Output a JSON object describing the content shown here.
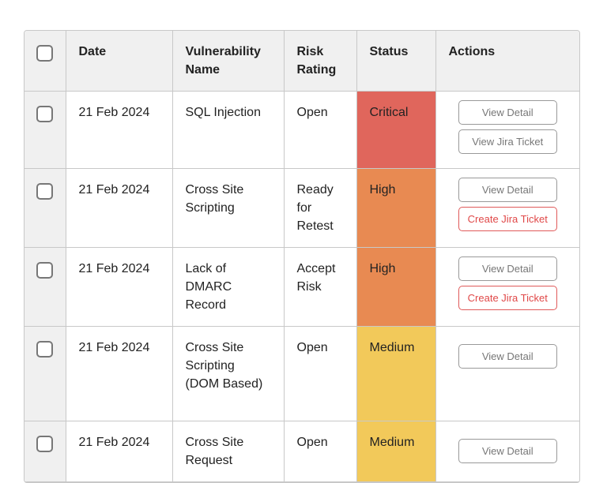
{
  "headers": [
    "Date",
    "Vulnerability Name",
    "Risk Rating",
    "Status",
    "Actions"
  ],
  "rows": [
    {
      "date": "21 Feb 2024",
      "name": "SQL Injection",
      "risk": "Open",
      "status": "Critical",
      "status_color": "#e0665c",
      "actions": [
        "View Detail",
        "View Jira Ticket"
      ]
    },
    {
      "date": "21 Feb 2024",
      "name": "Cross Site Scripting",
      "risk": "Ready for Retest",
      "status": "High",
      "status_color": "#e88a52",
      "actions": [
        "View Detail",
        "Create Jira Ticket"
      ]
    },
    {
      "date": "21 Feb 2024",
      "name": "Lack of DMARC Record",
      "risk": "Accept Risk",
      "status": "High",
      "status_color": "#e88a52",
      "actions": [
        "View Detail",
        "Create Jira Ticket"
      ]
    },
    {
      "date": "21 Feb 2024",
      "name": "Cross Site Scripting (DOM Based)",
      "risk": "Open",
      "status": "Medium",
      "status_color": "#f2c95a",
      "actions": [
        "View Detail"
      ]
    },
    {
      "date": "21 Feb 2024",
      "name": "Cross Site Request",
      "risk": "Open",
      "status": "Medium",
      "status_color": "#f2c95a",
      "actions": [
        "View Detail"
      ]
    }
  ]
}
